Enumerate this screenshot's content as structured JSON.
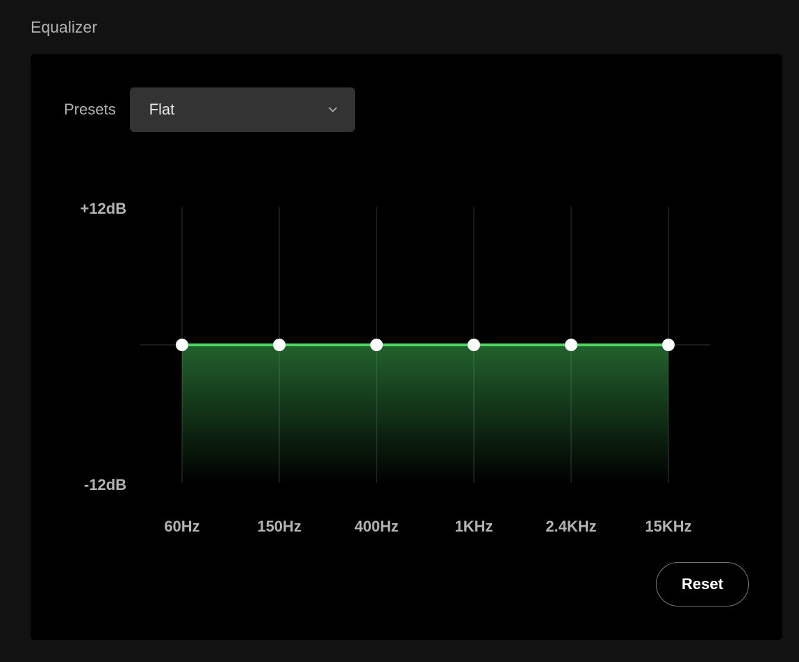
{
  "title": "Equalizer",
  "presets": {
    "label": "Presets",
    "selected": "Flat"
  },
  "chart": {
    "type": "equalizer",
    "y_max_label": "+12dB",
    "y_min_label": "-12dB",
    "y_max": 12,
    "y_min": -12,
    "bands": [
      {
        "label": "60Hz",
        "value": 0
      },
      {
        "label": "150Hz",
        "value": 0
      },
      {
        "label": "400Hz",
        "value": 0
      },
      {
        "label": "1KHz",
        "value": 0
      },
      {
        "label": "2.4KHz",
        "value": 0
      },
      {
        "label": "15KHz",
        "value": 0
      }
    ],
    "colors": {
      "background": "#000000",
      "grid_line": "#333333",
      "mid_line": "#333333",
      "series_line": "#4cd964",
      "series_fill_top": "rgba(76,217,100,0.45)",
      "series_fill_bottom": "rgba(76,217,100,0.0)",
      "handle_fill": "#ffffff",
      "label_text": "#b3b3b3"
    },
    "line_width": 4,
    "handle_radius": 9
  },
  "reset_label": "Reset"
}
